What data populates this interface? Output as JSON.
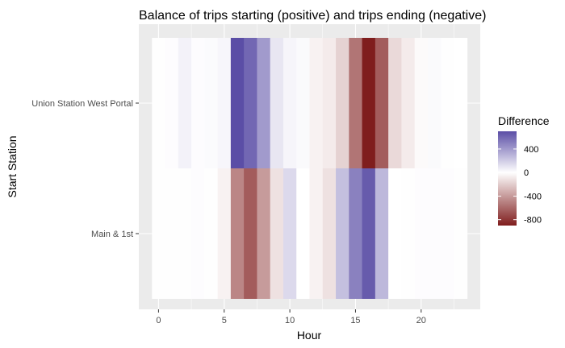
{
  "chart_data": {
    "type": "heatmap",
    "title": "Balance of trips starting (positive) and trips ending (negative)",
    "xlabel": "Hour",
    "ylabel": "Start Station",
    "x_ticks": [
      0,
      5,
      10,
      15,
      20
    ],
    "xlim": [
      -1.5,
      24.5
    ],
    "rows": [
      "Union Station West Portal",
      "Main & 1st"
    ],
    "hours": [
      0,
      1,
      2,
      3,
      4,
      5,
      6,
      7,
      8,
      9,
      10,
      11,
      12,
      13,
      14,
      15,
      16,
      17,
      18,
      19,
      20,
      21,
      22,
      23
    ],
    "values": [
      [
        5,
        10,
        50,
        10,
        15,
        35,
        700,
        600,
        400,
        100,
        40,
        20,
        -50,
        -80,
        -180,
        -550,
        -900,
        -650,
        -150,
        -80,
        -20,
        20,
        5,
        0
      ],
      [
        5,
        5,
        5,
        10,
        5,
        -50,
        -480,
        -650,
        -400,
        -120,
        150,
        0,
        -50,
        -120,
        250,
        500,
        650,
        280,
        0,
        5,
        10,
        10,
        10,
        5
      ]
    ],
    "legend": {
      "title": "Difference",
      "ticks": [
        400,
        0,
        -400,
        -800
      ],
      "range": [
        -900,
        700
      ]
    },
    "colors": {
      "high": "#5b4ea6",
      "mid": "#ffffff",
      "low": "#7f1d1d",
      "panel_bg": "#ebebeb",
      "grid": "#ffffff"
    }
  }
}
